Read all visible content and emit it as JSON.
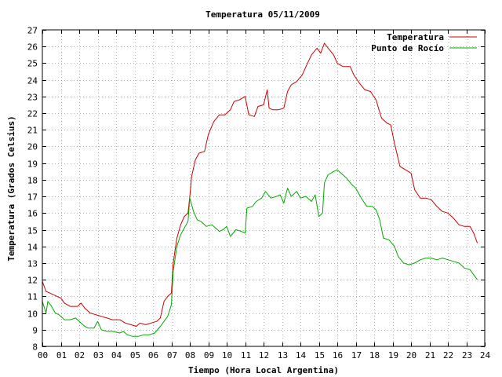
{
  "chart_data": {
    "type": "line",
    "title": "Temperatura 05/11/2009",
    "xlabel": "Tiempo (Hora Local Argentina)",
    "ylabel": "Temperatura (Grados Celsius)",
    "xlim": [
      0,
      24
    ],
    "ylim": [
      8,
      27
    ],
    "grid": true,
    "legend_position": "top-right",
    "x_tick_labels": [
      "00",
      "01",
      "02",
      "03",
      "04",
      "05",
      "06",
      "07",
      "08",
      "09",
      "10",
      "11",
      "12",
      "13",
      "14",
      "15",
      "16",
      "17",
      "18",
      "19",
      "20",
      "21",
      "22",
      "23",
      "24"
    ],
    "y_tick_labels": [
      "8",
      "9",
      "10",
      "11",
      "12",
      "13",
      "14",
      "15",
      "16",
      "17",
      "18",
      "19",
      "20",
      "21",
      "22",
      "23",
      "24",
      "25",
      "26",
      "27"
    ],
    "series": [
      {
        "name": "Temperatura",
        "color": "#cc0000",
        "points": [
          [
            0.0,
            11.9
          ],
          [
            0.2,
            11.3
          ],
          [
            0.4,
            11.2
          ],
          [
            0.6,
            11.1
          ],
          [
            0.8,
            11.0
          ],
          [
            1.0,
            10.9
          ],
          [
            1.2,
            10.6
          ],
          [
            1.5,
            10.4
          ],
          [
            1.9,
            10.4
          ],
          [
            2.1,
            10.6
          ],
          [
            2.3,
            10.3
          ],
          [
            2.6,
            10.0
          ],
          [
            2.9,
            9.9
          ],
          [
            3.2,
            9.8
          ],
          [
            3.5,
            9.7
          ],
          [
            3.8,
            9.6
          ],
          [
            4.2,
            9.6
          ],
          [
            4.5,
            9.4
          ],
          [
            4.8,
            9.3
          ],
          [
            5.1,
            9.2
          ],
          [
            5.3,
            9.4
          ],
          [
            5.6,
            9.3
          ],
          [
            5.9,
            9.4
          ],
          [
            6.2,
            9.5
          ],
          [
            6.4,
            9.7
          ],
          [
            6.6,
            10.7
          ],
          [
            6.8,
            11.0
          ],
          [
            7.0,
            11.2
          ],
          [
            7.1,
            13.0
          ],
          [
            7.3,
            14.5
          ],
          [
            7.5,
            15.3
          ],
          [
            7.7,
            15.8
          ],
          [
            7.9,
            16.0
          ],
          [
            8.0,
            17.0
          ],
          [
            8.1,
            18.2
          ],
          [
            8.3,
            19.2
          ],
          [
            8.5,
            19.6
          ],
          [
            8.8,
            19.7
          ],
          [
            9.0,
            20.7
          ],
          [
            9.3,
            21.5
          ],
          [
            9.6,
            21.9
          ],
          [
            9.9,
            21.9
          ],
          [
            10.2,
            22.2
          ],
          [
            10.4,
            22.7
          ],
          [
            10.7,
            22.8
          ],
          [
            11.0,
            23.0
          ],
          [
            11.2,
            21.9
          ],
          [
            11.5,
            21.8
          ],
          [
            11.7,
            22.4
          ],
          [
            12.0,
            22.5
          ],
          [
            12.2,
            23.4
          ],
          [
            12.3,
            22.3
          ],
          [
            12.5,
            22.2
          ],
          [
            12.8,
            22.2
          ],
          [
            13.1,
            22.3
          ],
          [
            13.3,
            23.3
          ],
          [
            13.5,
            23.7
          ],
          [
            13.8,
            23.9
          ],
          [
            14.1,
            24.3
          ],
          [
            14.3,
            24.8
          ],
          [
            14.6,
            25.5
          ],
          [
            14.9,
            25.9
          ],
          [
            15.1,
            25.6
          ],
          [
            15.3,
            26.2
          ],
          [
            15.5,
            25.9
          ],
          [
            15.8,
            25.5
          ],
          [
            16.0,
            25.0
          ],
          [
            16.3,
            24.8
          ],
          [
            16.7,
            24.8
          ],
          [
            16.9,
            24.3
          ],
          [
            17.2,
            23.8
          ],
          [
            17.5,
            23.4
          ],
          [
            17.8,
            23.3
          ],
          [
            18.1,
            22.8
          ],
          [
            18.4,
            21.7
          ],
          [
            18.7,
            21.4
          ],
          [
            18.9,
            21.3
          ],
          [
            19.1,
            20.2
          ],
          [
            19.4,
            18.8
          ],
          [
            19.7,
            18.6
          ],
          [
            20.0,
            18.4
          ],
          [
            20.2,
            17.4
          ],
          [
            20.5,
            16.9
          ],
          [
            20.8,
            16.9
          ],
          [
            21.1,
            16.8
          ],
          [
            21.4,
            16.4
          ],
          [
            21.7,
            16.1
          ],
          [
            22.0,
            16.0
          ],
          [
            22.3,
            15.7
          ],
          [
            22.6,
            15.3
          ],
          [
            22.9,
            15.2
          ],
          [
            23.2,
            15.2
          ],
          [
            23.4,
            14.8
          ],
          [
            23.6,
            14.2
          ]
        ]
      },
      {
        "name": "Punto de Rocío",
        "color": "#00aa00",
        "points": [
          [
            0.0,
            10.7
          ],
          [
            0.2,
            10.0
          ],
          [
            0.3,
            10.7
          ],
          [
            0.5,
            10.4
          ],
          [
            0.7,
            10.0
          ],
          [
            0.9,
            9.9
          ],
          [
            1.2,
            9.6
          ],
          [
            1.5,
            9.6
          ],
          [
            1.8,
            9.7
          ],
          [
            2.1,
            9.4
          ],
          [
            2.3,
            9.2
          ],
          [
            2.5,
            9.1
          ],
          [
            2.8,
            9.1
          ],
          [
            3.0,
            9.5
          ],
          [
            3.2,
            9.0
          ],
          [
            3.5,
            8.9
          ],
          [
            3.8,
            8.9
          ],
          [
            4.2,
            8.8
          ],
          [
            4.4,
            8.9
          ],
          [
            4.6,
            8.7
          ],
          [
            4.9,
            8.6
          ],
          [
            5.2,
            8.6
          ],
          [
            5.5,
            8.7
          ],
          [
            5.8,
            8.7
          ],
          [
            6.1,
            8.8
          ],
          [
            6.4,
            9.2
          ],
          [
            6.6,
            9.5
          ],
          [
            6.8,
            9.8
          ],
          [
            7.0,
            10.5
          ],
          [
            7.1,
            12.5
          ],
          [
            7.3,
            14.0
          ],
          [
            7.5,
            14.7
          ],
          [
            7.7,
            15.1
          ],
          [
            7.9,
            15.5
          ],
          [
            8.0,
            16.9
          ],
          [
            8.2,
            16.1
          ],
          [
            8.4,
            15.6
          ],
          [
            8.6,
            15.5
          ],
          [
            8.9,
            15.2
          ],
          [
            9.2,
            15.3
          ],
          [
            9.4,
            15.1
          ],
          [
            9.6,
            14.9
          ],
          [
            9.8,
            15.0
          ],
          [
            10.0,
            15.2
          ],
          [
            10.2,
            14.6
          ],
          [
            10.5,
            15.0
          ],
          [
            10.8,
            14.9
          ],
          [
            11.0,
            14.8
          ],
          [
            11.1,
            16.3
          ],
          [
            11.4,
            16.4
          ],
          [
            11.6,
            16.7
          ],
          [
            11.9,
            16.9
          ],
          [
            12.1,
            17.3
          ],
          [
            12.4,
            16.9
          ],
          [
            12.7,
            17.0
          ],
          [
            12.9,
            17.1
          ],
          [
            13.1,
            16.6
          ],
          [
            13.3,
            17.5
          ],
          [
            13.5,
            17.0
          ],
          [
            13.8,
            17.3
          ],
          [
            14.0,
            16.9
          ],
          [
            14.3,
            17.0
          ],
          [
            14.6,
            16.7
          ],
          [
            14.8,
            17.1
          ],
          [
            15.0,
            15.8
          ],
          [
            15.2,
            16.0
          ],
          [
            15.3,
            17.8
          ],
          [
            15.5,
            18.3
          ],
          [
            15.8,
            18.5
          ],
          [
            16.0,
            18.6
          ],
          [
            16.3,
            18.3
          ],
          [
            16.5,
            18.1
          ],
          [
            16.8,
            17.7
          ],
          [
            17.0,
            17.5
          ],
          [
            17.3,
            16.9
          ],
          [
            17.6,
            16.4
          ],
          [
            17.9,
            16.4
          ],
          [
            18.1,
            16.2
          ],
          [
            18.3,
            15.6
          ],
          [
            18.5,
            14.5
          ],
          [
            18.8,
            14.4
          ],
          [
            19.1,
            14.0
          ],
          [
            19.3,
            13.4
          ],
          [
            19.6,
            13.0
          ],
          [
            19.9,
            12.9
          ],
          [
            20.2,
            13.0
          ],
          [
            20.5,
            13.2
          ],
          [
            20.8,
            13.3
          ],
          [
            21.1,
            13.3
          ],
          [
            21.4,
            13.2
          ],
          [
            21.7,
            13.3
          ],
          [
            22.0,
            13.2
          ],
          [
            22.3,
            13.1
          ],
          [
            22.6,
            13.0
          ],
          [
            22.9,
            12.7
          ],
          [
            23.2,
            12.6
          ],
          [
            23.4,
            12.3
          ],
          [
            23.6,
            12.0
          ]
        ]
      }
    ]
  }
}
